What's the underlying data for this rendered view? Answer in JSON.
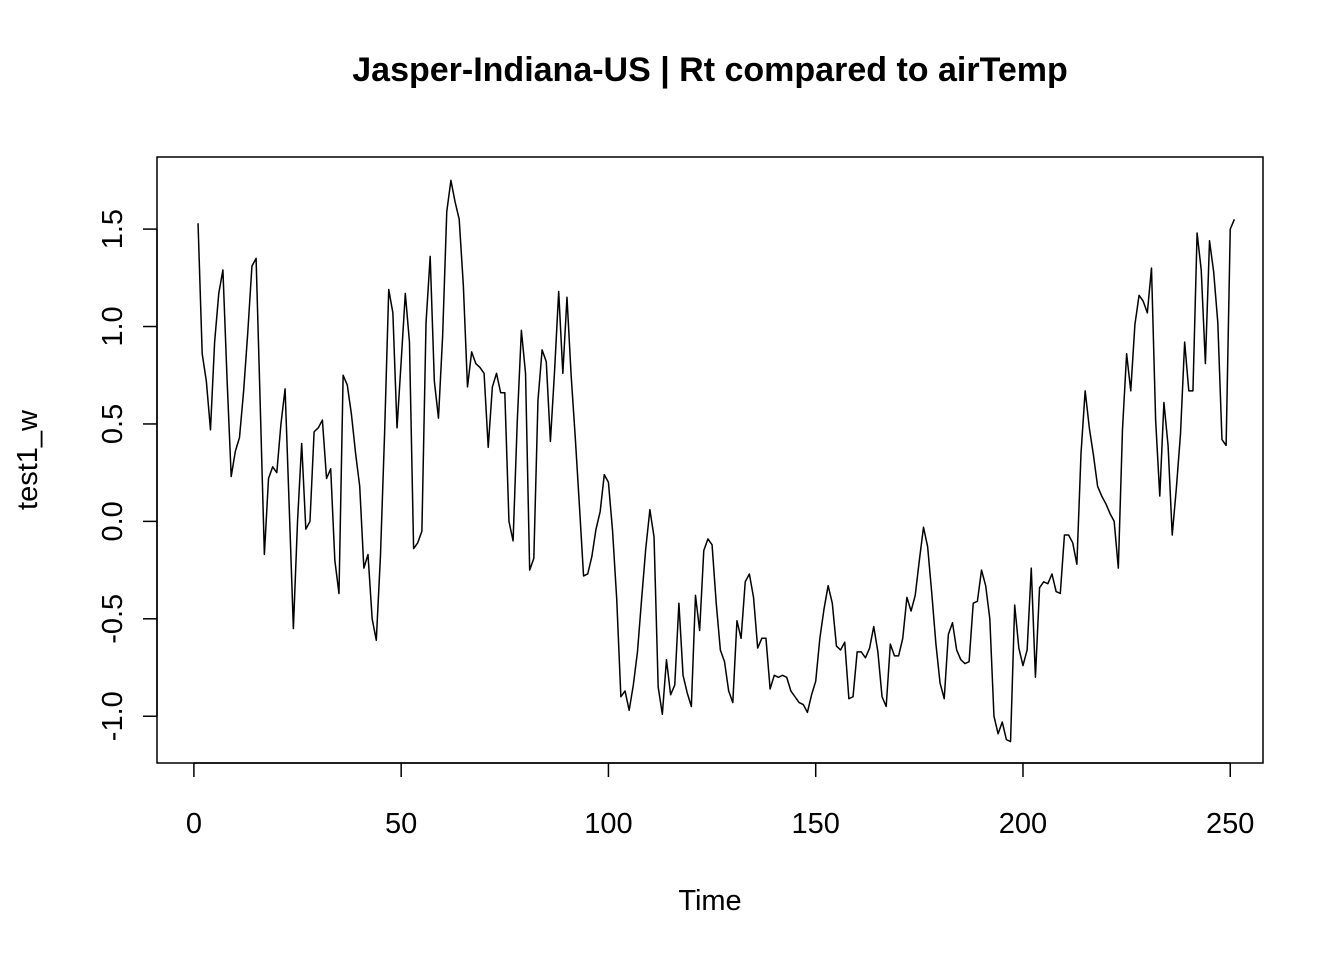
{
  "chart_data": {
    "type": "line",
    "title": "Jasper-Indiana-US | Rt compared to airTemp",
    "xlabel": "Time",
    "ylabel": "test1_w",
    "xlim": [
      -8.9,
      257.9
    ],
    "ylim": [
      -1.24,
      1.87
    ],
    "x_ticks": [
      0,
      50,
      100,
      150,
      200,
      250
    ],
    "y_ticks": [
      -1.0,
      -0.5,
      0.0,
      0.5,
      1.0,
      1.5
    ],
    "x_tick_labels": [
      "0",
      "50",
      "100",
      "150",
      "200",
      "250"
    ],
    "y_tick_labels": [
      "-1.0",
      "-0.5",
      "0.0",
      "0.5",
      "1.0",
      "1.5"
    ],
    "grid": false,
    "x_start": 1,
    "values": [
      1.53,
      0.86,
      0.72,
      0.47,
      0.92,
      1.17,
      1.29,
      0.73,
      0.23,
      0.36,
      0.43,
      0.67,
      0.97,
      1.31,
      1.35,
      0.6,
      -0.17,
      0.22,
      0.28,
      0.25,
      0.5,
      0.68,
      0.07,
      -0.55,
      0.0,
      0.4,
      -0.04,
      0.0,
      0.46,
      0.48,
      0.52,
      0.22,
      0.27,
      -0.2,
      -0.37,
      0.75,
      0.7,
      0.55,
      0.35,
      0.18,
      -0.24,
      -0.17,
      -0.5,
      -0.61,
      -0.18,
      0.45,
      1.19,
      1.07,
      0.48,
      0.82,
      1.17,
      0.92,
      -0.14,
      -0.11,
      -0.05,
      1.02,
      1.36,
      0.72,
      0.53,
      0.95,
      1.59,
      1.75,
      1.64,
      1.55,
      1.21,
      0.69,
      0.87,
      0.81,
      0.79,
      0.76,
      0.38,
      0.69,
      0.76,
      0.66,
      0.66,
      0.0,
      -0.1,
      0.51,
      0.98,
      0.76,
      -0.25,
      -0.19,
      0.62,
      0.88,
      0.82,
      0.41,
      0.77,
      1.18,
      0.76,
      1.15,
      0.75,
      0.43,
      0.08,
      -0.28,
      -0.27,
      -0.18,
      -0.04,
      0.05,
      0.24,
      0.2,
      -0.05,
      -0.4,
      -0.9,
      -0.87,
      -0.97,
      -0.84,
      -0.67,
      -0.4,
      -0.14,
      0.06,
      -0.08,
      -0.85,
      -0.99,
      -0.71,
      -0.89,
      -0.84,
      -0.42,
      -0.79,
      -0.88,
      -0.95,
      -0.38,
      -0.56,
      -0.15,
      -0.09,
      -0.12,
      -0.42,
      -0.66,
      -0.72,
      -0.87,
      -0.93,
      -0.51,
      -0.6,
      -0.31,
      -0.27,
      -0.39,
      -0.65,
      -0.6,
      -0.6,
      -0.86,
      -0.79,
      -0.8,
      -0.79,
      -0.8,
      -0.87,
      -0.9,
      -0.93,
      -0.94,
      -0.98,
      -0.89,
      -0.82,
      -0.6,
      -0.45,
      -0.33,
      -0.42,
      -0.64,
      -0.66,
      -0.62,
      -0.91,
      -0.9,
      -0.67,
      -0.67,
      -0.7,
      -0.65,
      -0.54,
      -0.67,
      -0.9,
      -0.95,
      -0.63,
      -0.69,
      -0.69,
      -0.6,
      -0.39,
      -0.46,
      -0.38,
      -0.2,
      -0.03,
      -0.13,
      -0.37,
      -0.63,
      -0.83,
      -0.91,
      -0.58,
      -0.52,
      -0.66,
      -0.71,
      -0.73,
      -0.72,
      -0.42,
      -0.41,
      -0.25,
      -0.33,
      -0.5,
      -1.0,
      -1.09,
      -1.03,
      -1.12,
      -1.13,
      -0.43,
      -0.65,
      -0.74,
      -0.66,
      -0.24,
      -0.8,
      -0.34,
      -0.31,
      -0.32,
      -0.27,
      -0.36,
      -0.37,
      -0.07,
      -0.07,
      -0.11,
      -0.22,
      0.35,
      0.67,
      0.48,
      0.34,
      0.18,
      0.13,
      0.09,
      0.04,
      0.0,
      -0.24,
      0.47,
      0.86,
      0.67,
      1.01,
      1.16,
      1.13,
      1.07,
      1.3,
      0.52,
      0.13,
      0.61,
      0.39,
      -0.07,
      0.17,
      0.45,
      0.92,
      0.67,
      0.67,
      1.48,
      1.29,
      0.81,
      1.44,
      1.28,
      1.02,
      0.42,
      0.39,
      1.5,
      1.55
    ]
  }
}
